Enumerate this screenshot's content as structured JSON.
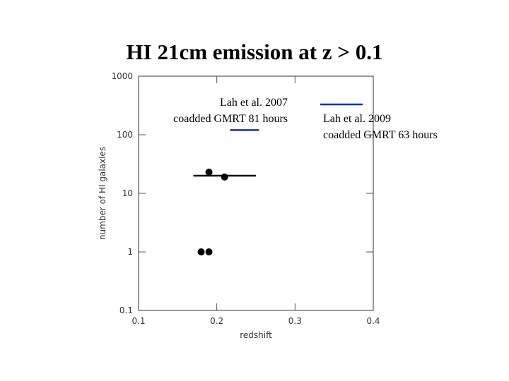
{
  "title": "HI 21cm emission at z > 0.1",
  "chart_data": {
    "type": "scatter",
    "xlabel": "redshift",
    "ylabel": "number of HI galaxies",
    "xlim": [
      0.1,
      0.4
    ],
    "ylim": [
      0.1,
      1000
    ],
    "yscale": "log",
    "xticks": [
      0.1,
      0.2,
      0.3,
      0.4
    ],
    "yticks": [
      0.1,
      1,
      10,
      100,
      1000
    ],
    "series": [
      {
        "color": "#000000",
        "x": [
          0.19,
          0.21,
          0.18,
          0.19
        ],
        "values": [
          23,
          19,
          1,
          1
        ]
      }
    ],
    "ranges": [
      {
        "color": "#000000",
        "x": [
          0.17,
          0.25
        ],
        "value": 20
      },
      {
        "color": "#1a2fa8",
        "x": [
          0.217,
          0.254
        ],
        "value": 120
      }
    ],
    "annotations": [
      {
        "lines": [
          "Lah et al. 2007",
          "coadded GMRT 81 hours"
        ]
      },
      {
        "lines": [
          "Lah et al. 2009",
          "coadded GMRT 63 hours"
        ],
        "color": "#1a2fa8"
      }
    ]
  }
}
